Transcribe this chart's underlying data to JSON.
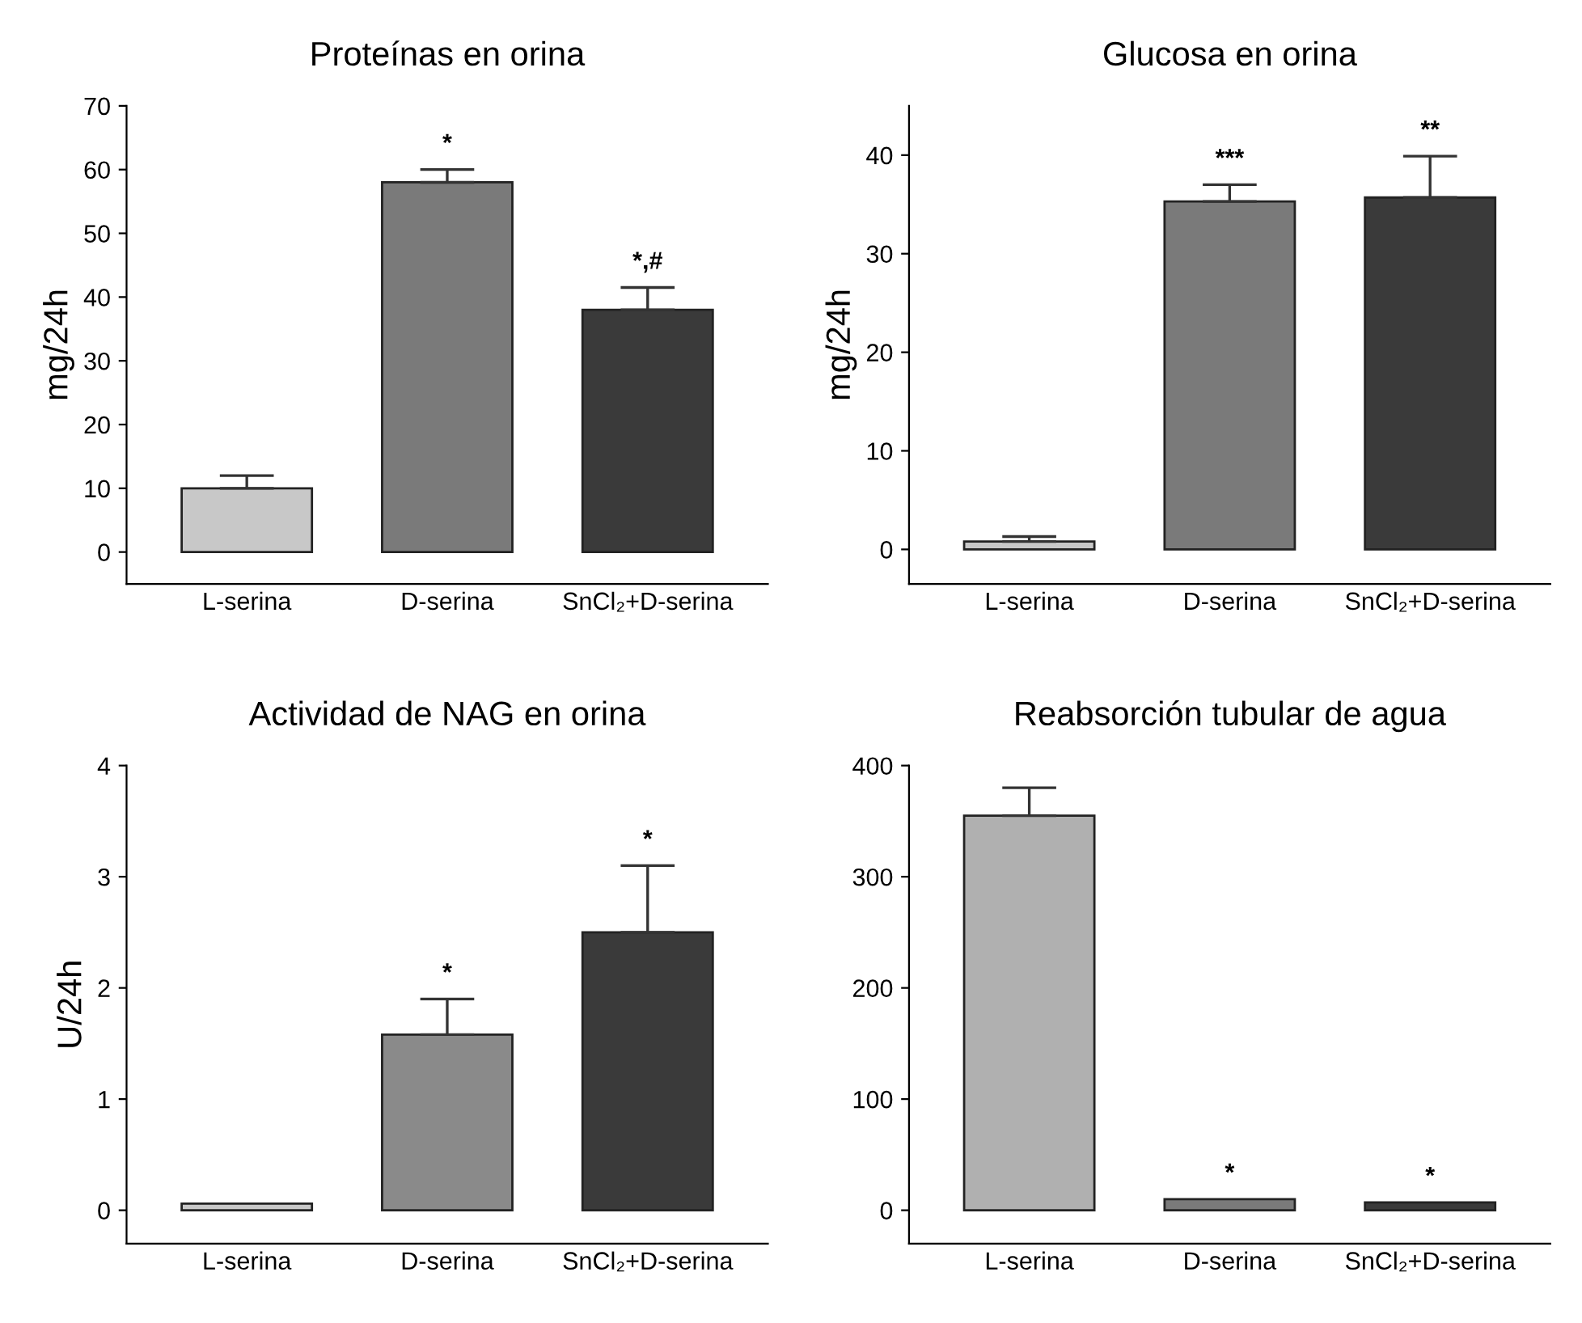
{
  "chart_data": [
    {
      "type": "bar",
      "title": "Proteínas en orina",
      "ylabel": "mg/24h",
      "categories": [
        "L-serina",
        "D-serina",
        "SnCl₂+D-serina"
      ],
      "values": [
        10,
        58,
        38
      ],
      "errors": [
        [
          10,
          12
        ],
        [
          58,
          60
        ],
        [
          38,
          41.5
        ]
      ],
      "colors": [
        "#c8c8c8",
        "#7a7a7a",
        "#3a3a3a"
      ],
      "ylim": [
        -5,
        70
      ],
      "yticks": [
        0,
        10,
        20,
        30,
        40,
        50,
        60,
        70
      ],
      "annotations": [
        "*",
        "*,#"
      ]
    },
    {
      "type": "bar",
      "title": "Glucosa en orina",
      "ylabel": "mg/24h",
      "categories": [
        "L-serina",
        "D-serina",
        "SnCl₂+D-serina"
      ],
      "values": [
        0.8,
        35.3,
        35.7
      ],
      "errors": [
        [
          0.8,
          1.3
        ],
        [
          35.3,
          37
        ],
        [
          35.7,
          39.9
        ]
      ],
      "colors": [
        "#c8c8c8",
        "#7a7a7a",
        "#3a3a3a"
      ],
      "ylim": [
        -3.5,
        45
      ],
      "yticks": [
        0,
        10,
        20,
        30,
        40
      ],
      "annotations": [
        "***",
        "**"
      ]
    },
    {
      "type": "bar",
      "title": "Actividad de NAG en orina",
      "ylabel": "U/24h",
      "categories": [
        "L-serina",
        "D-serina",
        "SnCl₂+D-serina"
      ],
      "values": [
        0.06,
        1.58,
        2.5
      ],
      "errors": [
        null,
        [
          1.58,
          1.9
        ],
        [
          2.5,
          3.1
        ]
      ],
      "colors": [
        "#c8c8c8",
        "#8a8a8a",
        "#3a3a3a"
      ],
      "ylim": [
        -0.3,
        4
      ],
      "yticks": [
        0,
        1,
        2,
        3,
        4
      ],
      "annotations": [
        "*",
        "*"
      ]
    },
    {
      "type": "bar",
      "title": "Reabsorción tubular de agua",
      "categories": [
        "L-serina",
        "D-serina",
        "SnCl₂+D-serina"
      ],
      "values": [
        355,
        10,
        7
      ],
      "errors": [
        [
          355,
          380
        ],
        null,
        null
      ],
      "colors": [
        "#b0b0b0",
        "#7a7a7a",
        "#3a3a3a"
      ],
      "ylim": [
        -30,
        400
      ],
      "yticks": [
        0,
        100,
        200,
        300,
        400
      ],
      "annotations": [
        "*",
        "*"
      ]
    }
  ]
}
